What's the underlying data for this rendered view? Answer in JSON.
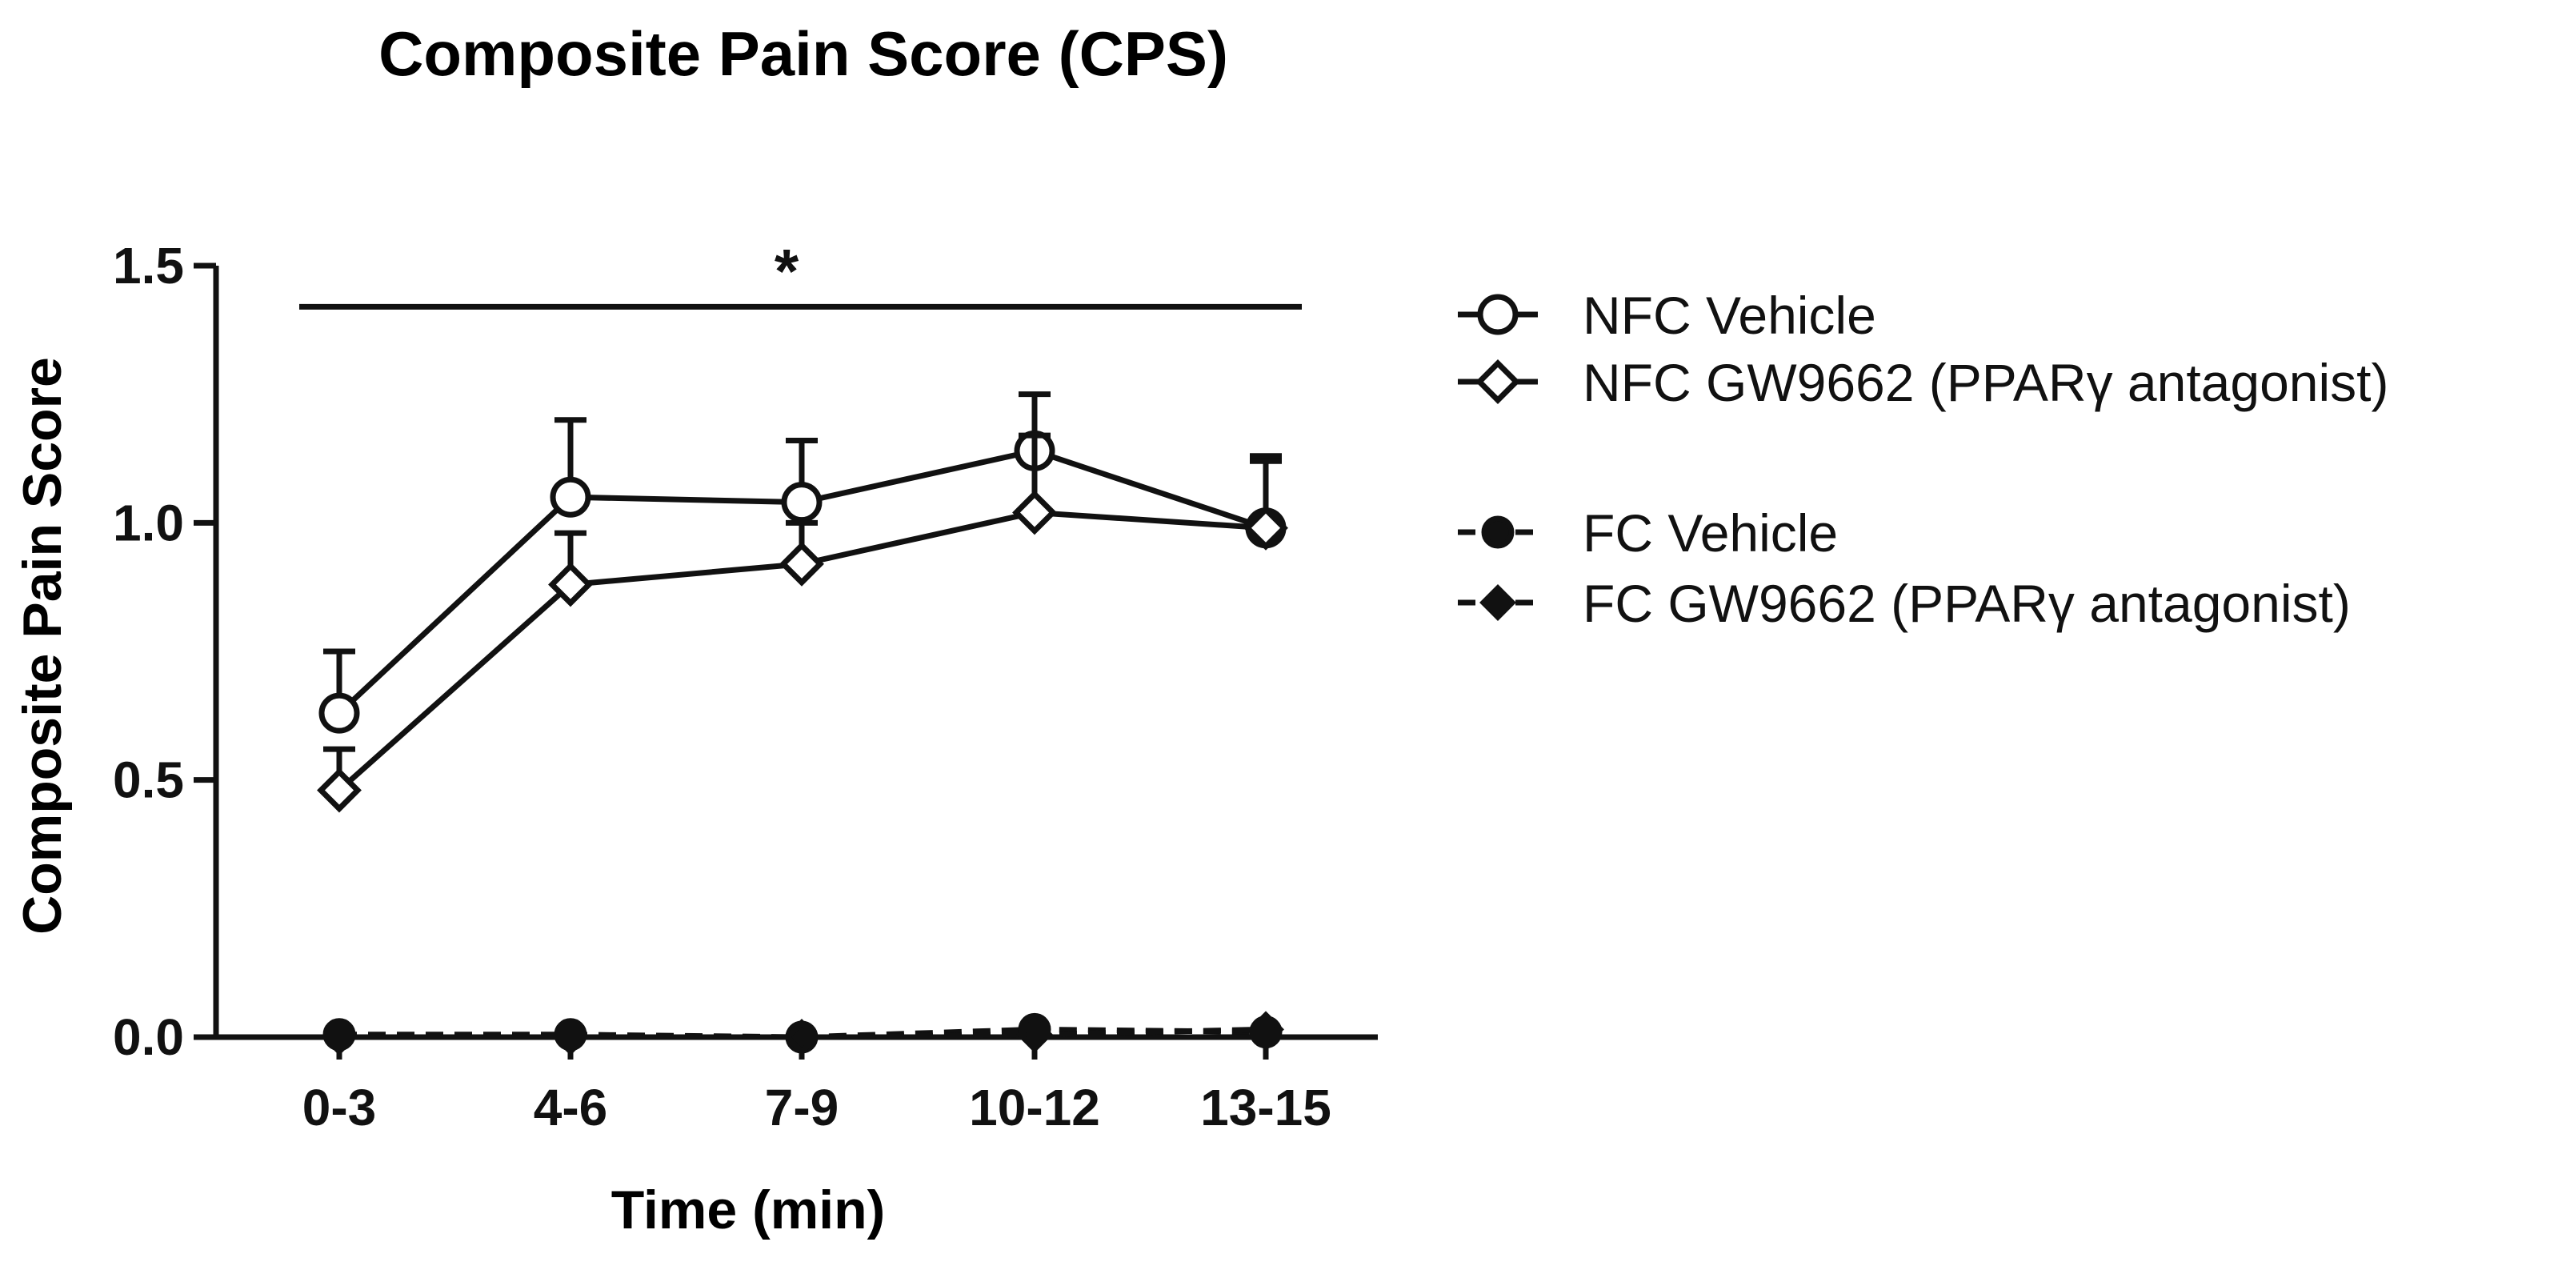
{
  "chart_data": {
    "type": "line",
    "title": "Composite Pain Score (CPS)",
    "xlabel": "Time (min)",
    "ylabel": "Composite Pain Score",
    "categories": [
      "0-3",
      "4-6",
      "7-9",
      "10-12",
      "13-15"
    ],
    "ylim": [
      0,
      1.5
    ],
    "yticks": [
      0.0,
      0.5,
      1.0,
      1.5
    ],
    "ytick_labels": [
      "0.0",
      "0.5",
      "1.0",
      "1.5"
    ],
    "grid": false,
    "legend_position": "right",
    "significance": {
      "label": "*",
      "from_category": "0-3",
      "to_category": "13-15",
      "y": 1.42
    },
    "series": [
      {
        "name": "NFC  Vehicle",
        "marker": "circle-open",
        "line": "solid",
        "values": [
          0.63,
          1.05,
          1.04,
          1.14,
          0.99
        ],
        "errors": [
          0.12,
          0.15,
          0.12,
          0.11,
          0.14
        ]
      },
      {
        "name": "NFC  GW9662 (PPARγ antagonist)",
        "marker": "diamond-open",
        "line": "solid",
        "values": [
          0.48,
          0.88,
          0.92,
          1.02,
          0.99
        ],
        "errors": [
          0.08,
          0.1,
          0.08,
          0.15,
          0.13
        ]
      },
      {
        "name": "FC  Vehicle",
        "marker": "circle-filled",
        "line": "dashed",
        "values": [
          0.005,
          0.005,
          0.0,
          0.015,
          0.01
        ],
        "errors": [
          0,
          0,
          0,
          0,
          0
        ]
      },
      {
        "name": "FC  GW9662 (PPARγ antagonist)",
        "marker": "diamond-filled",
        "line": "dashed",
        "values": [
          0.0,
          0.0,
          0.0,
          0.005,
          0.015
        ],
        "errors": [
          0,
          0,
          0,
          0,
          0
        ]
      }
    ]
  },
  "colors": {
    "ink": "#111111",
    "background": "#ffffff"
  }
}
